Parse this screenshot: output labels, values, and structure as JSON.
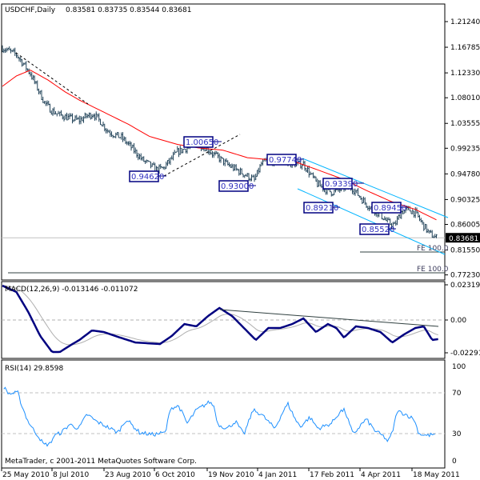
{
  "header": {
    "symbol_label": "USDCHF,Daily",
    "ohlc": "0.83581 0.83735 0.83544 0.83681"
  },
  "colors": {
    "bars": "#23445a",
    "ma": "#ff0000",
    "channel": "#00b4ff",
    "label_border": "#000080",
    "macd": "#000080",
    "signal": "#b0b0b0",
    "rsi": "#1e90ff",
    "price_tag_bg": "#000000"
  },
  "footer": {
    "copyright": "MetaTrader, c 2001-2011 MetaQuotes Software Corp."
  },
  "chart_data": [
    {
      "type": "bar",
      "subtype": "ohlc-price",
      "title": "USDCHF,Daily",
      "start_date": "25 May 2010",
      "sampling": "weekly approximate closes",
      "closes": [
        1.1665,
        1.161,
        1.155,
        1.139,
        1.122,
        1.097,
        1.072,
        1.058,
        1.051,
        1.047,
        1.043,
        1.041,
        1.048,
        1.052,
        1.039,
        1.023,
        1.016,
        1.011,
        0.999,
        0.986,
        0.972,
        0.964,
        0.955,
        0.958,
        0.972,
        0.986,
        0.991,
        0.997,
        1.0,
        0.994,
        0.983,
        0.975,
        0.965,
        0.958,
        0.951,
        0.944,
        0.937,
        0.965,
        0.972,
        0.969,
        0.972,
        0.965,
        0.965,
        0.965,
        0.947,
        0.93,
        0.922,
        0.916,
        0.919,
        0.926,
        0.923,
        0.909,
        0.895,
        0.886,
        0.877,
        0.864,
        0.858,
        0.882,
        0.886,
        0.88,
        0.861,
        0.844,
        0.83681
      ],
      "moving_average": [
        [
          0,
          1.1
        ],
        [
          2,
          1.118
        ],
        [
          4,
          1.128
        ],
        [
          6.5,
          1.111
        ],
        [
          9,
          1.09
        ],
        [
          11,
          1.076
        ],
        [
          14.5,
          1.055
        ],
        [
          18,
          1.034
        ],
        [
          21,
          1.013
        ],
        [
          25,
          0.999
        ],
        [
          28,
          0.993
        ],
        [
          31.5,
          0.989
        ],
        [
          35,
          0.976
        ],
        [
          38.5,
          0.972
        ],
        [
          42,
          0.968
        ],
        [
          45,
          0.955
        ],
        [
          49,
          0.937
        ],
        [
          52,
          0.919
        ],
        [
          55.5,
          0.9
        ],
        [
          59,
          0.886
        ],
        [
          62,
          0.868
        ]
      ],
      "y_ticks": [
        "1.21240",
        "1.16785",
        "1.12330",
        "1.08010",
        "1.03555",
        "0.99235",
        "0.94780",
        "0.90325",
        "0.86005",
        "0.81550",
        "0.77230"
      ],
      "current_price": "0.83681",
      "annotations": [
        {
          "text": "0.94620",
          "price": 0.9462
        },
        {
          "text": "1.00650",
          "price": 1.0065
        },
        {
          "text": "0.97740",
          "price": 0.9774
        },
        {
          "text": "0.93000",
          "price": 0.93
        },
        {
          "text": "0.93390",
          "price": 0.9339
        },
        {
          "text": "0.89210",
          "price": 0.8921
        },
        {
          "text": "0.89450",
          "price": 0.8945
        },
        {
          "text": "0.85520",
          "price": 0.8552
        }
      ],
      "fe_levels": [
        {
          "text": "FE 100.0"
        },
        {
          "text": "FE 100.0"
        }
      ],
      "x_ticks": [
        "25 May 2010",
        "8 Jul 2010",
        "23 Aug 2010",
        "6 Oct 2010",
        "19 Nov 2010",
        "4 Jan 2011",
        "17 Feb 2011",
        "4 Apr 2011",
        "18 May 2011"
      ]
    },
    {
      "type": "line",
      "title": "MACD(12,26,9) -0.013146 -0.011072",
      "macd": [
        [
          0,
          0.0237
        ],
        [
          2,
          0.0193
        ],
        [
          3.7,
          0.0055
        ],
        [
          5.4,
          -0.011
        ],
        [
          7.1,
          -0.0221
        ],
        [
          8.2,
          -0.0221
        ],
        [
          10,
          -0.0166
        ],
        [
          11,
          -0.0138
        ],
        [
          12.8,
          -0.0072
        ],
        [
          14.5,
          -0.0083
        ],
        [
          16.8,
          -0.0121
        ],
        [
          19,
          -0.0155
        ],
        [
          22.5,
          -0.0166
        ],
        [
          24.2,
          -0.011
        ],
        [
          26,
          -0.0028
        ],
        [
          27.7,
          -0.0044
        ],
        [
          29.4,
          0.0028
        ],
        [
          31,
          0.0083
        ],
        [
          32.8,
          0.0028
        ],
        [
          34.5,
          -0.0055
        ],
        [
          36.2,
          -0.0138
        ],
        [
          38,
          -0.0055
        ],
        [
          39.7,
          -0.0055
        ],
        [
          41.4,
          -0.0028
        ],
        [
          43,
          0.0011
        ],
        [
          44.8,
          -0.0083
        ],
        [
          46.5,
          -0.0028
        ],
        [
          47.7,
          -0.0055
        ],
        [
          48.8,
          -0.0121
        ],
        [
          50.5,
          -0.0044
        ],
        [
          52.2,
          -0.0055
        ],
        [
          54,
          -0.0083
        ],
        [
          55.7,
          -0.0155
        ],
        [
          57.4,
          -0.0099
        ],
        [
          59,
          -0.0055
        ],
        [
          60.2,
          -0.0044
        ],
        [
          61.4,
          -0.0138
        ],
        [
          62.3,
          -0.013146
        ]
      ],
      "signal_last": -0.011072,
      "y_ticks": [
        "0.023194",
        "0.00",
        "-0.02291"
      ],
      "ylim": [
        -0.02291,
        0.023194
      ]
    },
    {
      "type": "line",
      "title": "RSI(14) 29.8598",
      "rsi": [
        [
          0.2,
          75.5
        ],
        [
          0.9,
          69
        ],
        [
          2.2,
          70
        ],
        [
          2.8,
          57
        ],
        [
          3.6,
          43
        ],
        [
          4.3,
          35
        ],
        [
          5.3,
          26
        ],
        [
          5.9,
          19
        ],
        [
          6.8,
          20
        ],
        [
          7.4,
          28
        ],
        [
          8.4,
          31
        ],
        [
          9.6,
          39
        ],
        [
          10.9,
          35
        ],
        [
          12.1,
          49
        ],
        [
          13.4,
          42
        ],
        [
          14.6,
          38
        ],
        [
          16.5,
          31
        ],
        [
          17.7,
          44
        ],
        [
          19.6,
          31
        ],
        [
          21.5,
          29
        ],
        [
          23.3,
          31
        ],
        [
          24,
          55
        ],
        [
          25.2,
          57
        ],
        [
          26.4,
          40
        ],
        [
          27.7,
          53
        ],
        [
          29.6,
          61
        ],
        [
          30.2,
          57
        ],
        [
          30.8,
          39
        ],
        [
          32.1,
          35
        ],
        [
          33.3,
          42
        ],
        [
          34.5,
          29
        ],
        [
          35.8,
          53
        ],
        [
          37,
          49
        ],
        [
          38.9,
          35
        ],
        [
          40.2,
          53
        ],
        [
          40.8,
          59
        ],
        [
          42,
          42
        ],
        [
          42.6,
          37
        ],
        [
          43.9,
          46
        ],
        [
          45.1,
          35
        ],
        [
          47,
          40
        ],
        [
          48.3,
          52
        ],
        [
          48.9,
          53
        ],
        [
          50.1,
          29
        ],
        [
          51.4,
          40
        ],
        [
          52,
          44
        ],
        [
          53.2,
          33
        ],
        [
          54.5,
          27
        ],
        [
          55.1,
          22
        ],
        [
          55.7,
          31
        ],
        [
          56.4,
          52
        ],
        [
          57.6,
          49
        ],
        [
          58.8,
          44
        ],
        [
          59.5,
          30
        ],
        [
          60.7,
          28
        ],
        [
          62,
          29.8598
        ]
      ],
      "levels": [
        70,
        30
      ],
      "y_ticks": [
        "100",
        "70",
        "30",
        "0"
      ],
      "ylim": [
        0,
        100
      ]
    }
  ]
}
